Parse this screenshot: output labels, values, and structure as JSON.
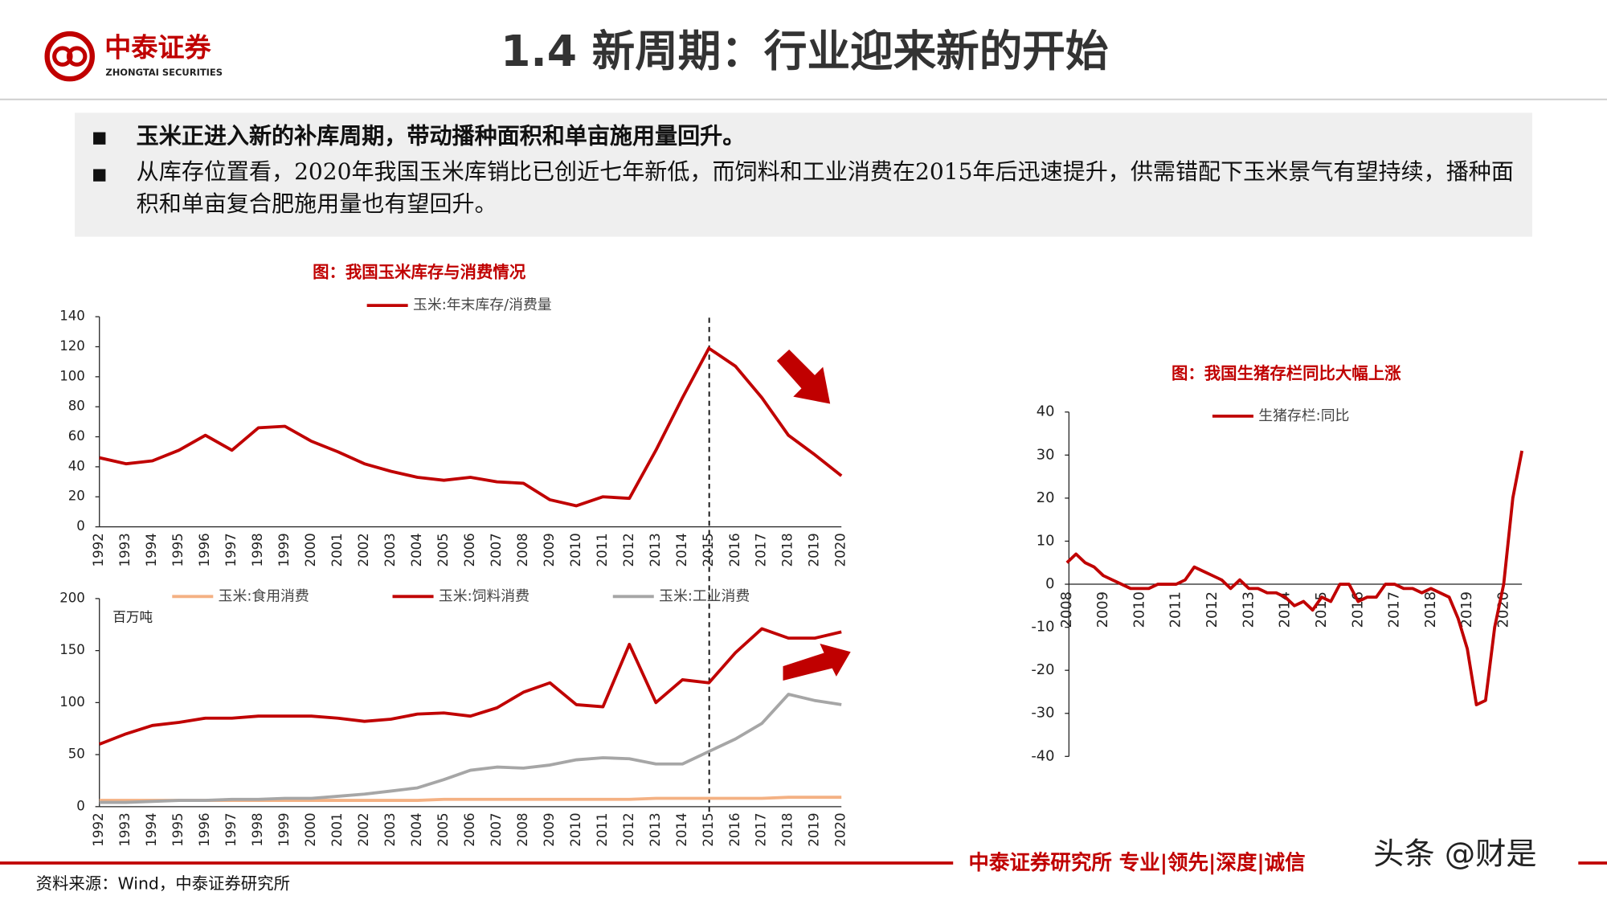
{
  "header": {
    "logo_cn": "中泰证券",
    "logo_en": "ZHONGTAI SECURITIES",
    "title": "1.4 新周期：行业迎来新的开始"
  },
  "bullets": [
    "玉米正进入新的补库周期，带动播种面积和单亩施用量回升。",
    "从库存位置看，2020年我国玉米库销比已创近七年新低，而饲料和工业消费在2015年后迅速提升，供需错配下玉米景气有望持续，播种面积和单亩复合肥施用量也有望回升。"
  ],
  "chart_data": [
    {
      "type": "line",
      "title": "图：我国玉米库存与消费情况",
      "categories": [
        "1992",
        "1993",
        "1994",
        "1995",
        "1996",
        "1997",
        "1998",
        "1999",
        "2000",
        "2001",
        "2002",
        "2003",
        "2004",
        "2005",
        "2006",
        "2007",
        "2008",
        "2009",
        "2010",
        "2011",
        "2012",
        "2013",
        "2014",
        "2015",
        "2016",
        "2017",
        "2018",
        "2019",
        "2020"
      ],
      "series": [
        {
          "name": "玉米:年末库存/消费量",
          "color": "#c00000",
          "values": [
            46,
            42,
            44,
            51,
            61,
            51,
            66,
            67,
            57,
            50,
            42,
            37,
            33,
            31,
            33,
            30,
            29,
            18,
            14,
            20,
            19,
            51,
            86,
            119,
            107,
            86,
            61,
            48,
            34
          ]
        }
      ],
      "ylim": [
        0,
        140
      ],
      "yticks": [
        0,
        20,
        40,
        60,
        80,
        100,
        120,
        140
      ],
      "grid": false,
      "legend": "top"
    },
    {
      "type": "line",
      "y_unit": "百万吨",
      "categories": [
        "1992",
        "1993",
        "1994",
        "1995",
        "1996",
        "1997",
        "1998",
        "1999",
        "2000",
        "2001",
        "2002",
        "2003",
        "2004",
        "2005",
        "2006",
        "2007",
        "2008",
        "2009",
        "2010",
        "2011",
        "2012",
        "2013",
        "2014",
        "2015",
        "2016",
        "2017",
        "2018",
        "2019",
        "2020"
      ],
      "series": [
        {
          "name": "玉米:食用消费",
          "color": "#f4b183",
          "values": [
            6,
            6,
            6,
            6,
            6,
            6,
            6,
            6,
            6,
            6,
            6,
            6,
            6,
            7,
            7,
            7,
            7,
            7,
            7,
            7,
            7,
            8,
            8,
            8,
            8,
            8,
            9,
            9,
            9
          ]
        },
        {
          "name": "玉米:饲料消费",
          "color": "#c00000",
          "values": [
            60,
            70,
            78,
            81,
            85,
            85,
            87,
            87,
            87,
            85,
            82,
            84,
            89,
            90,
            87,
            95,
            110,
            119,
            98,
            96,
            156,
            100,
            122,
            119,
            148,
            171,
            162,
            162,
            168
          ]
        },
        {
          "name": "玉米:工业消费",
          "color": "#a6a6a6",
          "values": [
            4,
            4,
            5,
            6,
            6,
            7,
            7,
            8,
            8,
            10,
            12,
            15,
            18,
            26,
            35,
            38,
            37,
            40,
            45,
            47,
            46,
            41,
            41,
            53,
            65,
            80,
            108,
            102,
            98
          ]
        }
      ],
      "ylim": [
        0,
        200
      ],
      "yticks": [
        0,
        50,
        100,
        150,
        200
      ],
      "grid": false,
      "legend": "top"
    },
    {
      "type": "line",
      "title": "图：我国生猪存栏同比大幅上涨",
      "categories": [
        "2008",
        null,
        null,
        null,
        "2009",
        null,
        null,
        null,
        "2010",
        null,
        null,
        null,
        "2011",
        null,
        null,
        null,
        "2012",
        null,
        null,
        null,
        "2013",
        null,
        null,
        null,
        "2014",
        null,
        null,
        null,
        "2015",
        null,
        null,
        null,
        "2016",
        null,
        null,
        null,
        "2017",
        null,
        null,
        null,
        "2018",
        null,
        null,
        null,
        "2019",
        null,
        null,
        null,
        "2020",
        null,
        null
      ],
      "series": [
        {
          "name": "生猪存栏:同比",
          "color": "#c00000",
          "values": [
            5,
            7,
            5,
            4,
            2,
            1,
            0,
            -1,
            -1,
            -1,
            0,
            0,
            0,
            1,
            4,
            3,
            2,
            1,
            -1,
            1,
            -1,
            -1,
            -2,
            -2,
            -3,
            -5,
            -4,
            -6,
            -3,
            -4,
            0,
            0,
            -4,
            -3,
            -3,
            0,
            0,
            -1,
            -1,
            -2,
            -1,
            -2,
            -3,
            -8,
            -15,
            -28,
            -27,
            -10,
            0,
            20,
            31
          ]
        }
      ],
      "ylim": [
        -40,
        40
      ],
      "yticks": [
        -40,
        -30,
        -20,
        -10,
        0,
        10,
        20,
        30,
        40
      ],
      "grid": false,
      "legend": "top"
    }
  ],
  "footer": {
    "slogan": "中泰证券研究所 专业|领先|深度|诚信",
    "source": "资料来源：Wind，中泰证券研究所",
    "watermark": "头条 @财是"
  }
}
